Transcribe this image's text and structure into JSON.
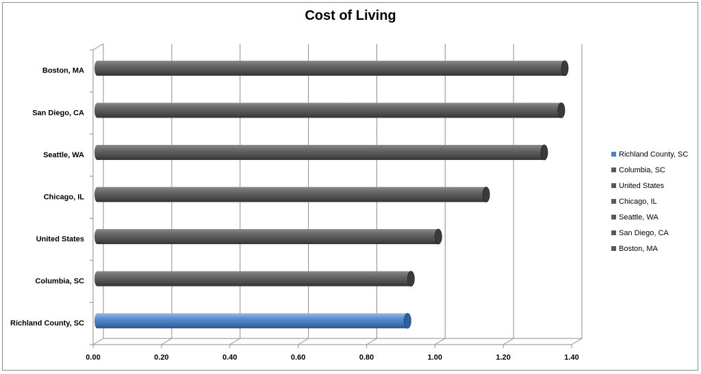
{
  "chart_data": {
    "type": "bar",
    "orientation": "horizontal",
    "title": "Cost of Living",
    "categories": [
      "Richland County, SC",
      "Columbia, SC",
      "United States",
      "Chicago, IL",
      "Seattle, WA",
      "San Diego, CA",
      "Boston, MA"
    ],
    "values": [
      0.92,
      0.93,
      1.01,
      1.15,
      1.32,
      1.37,
      1.38
    ],
    "colors": [
      "#4f81bd",
      "#595959",
      "#595959",
      "#595959",
      "#595959",
      "#595959",
      "#595959"
    ],
    "xlim": [
      0,
      1.4
    ],
    "xticks": [
      "0.00",
      "0.20",
      "0.40",
      "0.60",
      "0.80",
      "1.00",
      "1.20",
      "1.40"
    ],
    "grid": true,
    "legend": {
      "position": "right",
      "items": [
        {
          "label": "Richland County, SC",
          "color": "#4f81bd"
        },
        {
          "label": "Columbia, SC",
          "color": "#595959"
        },
        {
          "label": "United States",
          "color": "#595959"
        },
        {
          "label": "Chicago, IL",
          "color": "#595959"
        },
        {
          "label": "Seattle, WA",
          "color": "#595959"
        },
        {
          "label": "San Diego, CA",
          "color": "#595959"
        },
        {
          "label": "Boston, MA",
          "color": "#595959"
        }
      ]
    }
  }
}
